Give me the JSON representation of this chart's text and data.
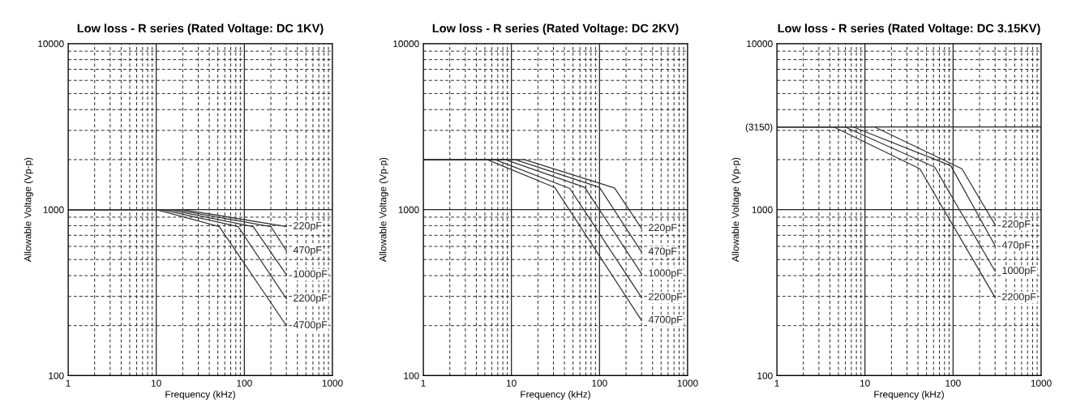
{
  "chart_data": [
    {
      "type": "line",
      "title": "Low loss - R series (Rated Voltage: DC 1KV)",
      "xlabel": "Frequency (kHz)",
      "ylabel": "Allowable Voltage (Vp-p)",
      "log": "xy",
      "grid": true,
      "xlim": [
        1,
        1000
      ],
      "ylim": [
        100,
        10000
      ],
      "xticks": [
        1,
        10,
        100,
        1000
      ],
      "yticks": [
        100,
        1000,
        10000
      ],
      "series": [
        {
          "name": "220pF",
          "color": "#333333",
          "x": [
            1,
            20,
            300
          ],
          "values": [
            1000,
            1000,
            790
          ]
        },
        {
          "name": "470pF",
          "color": "#333333",
          "x": [
            1,
            16.5,
            200,
            300
          ],
          "values": [
            1000,
            1000,
            790,
            565
          ]
        },
        {
          "name": "1000pF",
          "color": "#333333",
          "x": [
            1,
            13.8,
            126,
            300
          ],
          "values": [
            1000,
            1000,
            790,
            405
          ]
        },
        {
          "name": "2200pF",
          "color": "#333333",
          "x": [
            1,
            11.5,
            85,
            300
          ],
          "values": [
            1000,
            1000,
            790,
            290
          ]
        },
        {
          "name": "4700pF",
          "color": "#333333",
          "x": [
            1,
            10,
            52,
            300
          ],
          "values": [
            1000,
            1000,
            790,
            200
          ]
        }
      ]
    },
    {
      "type": "line",
      "title": "Low loss - R series (Rated Voltage: DC 2KV)",
      "xlabel": "Frequency (kHz)",
      "ylabel": "Allowable Voltage (Vp-p)",
      "log": "xy",
      "grid": true,
      "xlim": [
        1,
        1000
      ],
      "ylim": [
        100,
        10000
      ],
      "xticks": [
        1,
        10,
        100,
        1000
      ],
      "yticks": [
        100,
        1000,
        10000
      ],
      "series": [
        {
          "name": "220pF",
          "color": "#333333",
          "x": [
            1,
            14,
            148,
            300
          ],
          "values": [
            2000,
            2000,
            1350,
            770
          ]
        },
        {
          "name": "470pF",
          "color": "#333333",
          "x": [
            1,
            11,
            100,
            300
          ],
          "values": [
            2000,
            2000,
            1360,
            555
          ]
        },
        {
          "name": "1000pF",
          "color": "#333333",
          "x": [
            1,
            8.5,
            68,
            300
          ],
          "values": [
            2000,
            2000,
            1360,
            410
          ]
        },
        {
          "name": "2200pF",
          "color": "#333333",
          "x": [
            1,
            6.5,
            46,
            300
          ],
          "values": [
            2000,
            2000,
            1340,
            295
          ]
        },
        {
          "name": "4700pF",
          "color": "#333333",
          "x": [
            1,
            5.3,
            31,
            300
          ],
          "values": [
            2000,
            2000,
            1360,
            215
          ]
        }
      ]
    },
    {
      "type": "line",
      "title": "Low loss - R series (Rated Voltage: DC 3.15KV)",
      "xlabel": "Frequency (kHz)",
      "ylabel": "Allowable Voltage (Vp-p)",
      "log": "xy",
      "grid": true,
      "xlim": [
        1,
        1000
      ],
      "ylim": [
        100,
        10000
      ],
      "xticks": [
        1,
        10,
        100,
        1000
      ],
      "yticks": [
        100,
        {
          "value": 3150,
          "label": "(3150)"
        },
        1000,
        10000
      ],
      "series": [
        {
          "name": "220pF",
          "color": "#333333",
          "x": [
            1,
            12.8,
            126,
            300
          ],
          "values": [
            3150,
            3150,
            1760,
            810
          ]
        },
        {
          "name": "470pF",
          "color": "#333333",
          "x": [
            1,
            7.3,
            94,
            300
          ],
          "values": [
            3150,
            3150,
            1840,
            605
          ]
        },
        {
          "name": "1000pF",
          "color": "#333333",
          "x": [
            1,
            5.9,
            62,
            300
          ],
          "values": [
            3150,
            3150,
            1800,
            425
          ]
        },
        {
          "name": "2200pF",
          "color": "#333333",
          "x": [
            1,
            4.4,
            42,
            300
          ],
          "values": [
            3150,
            3150,
            1760,
            295
          ]
        }
      ]
    }
  ]
}
